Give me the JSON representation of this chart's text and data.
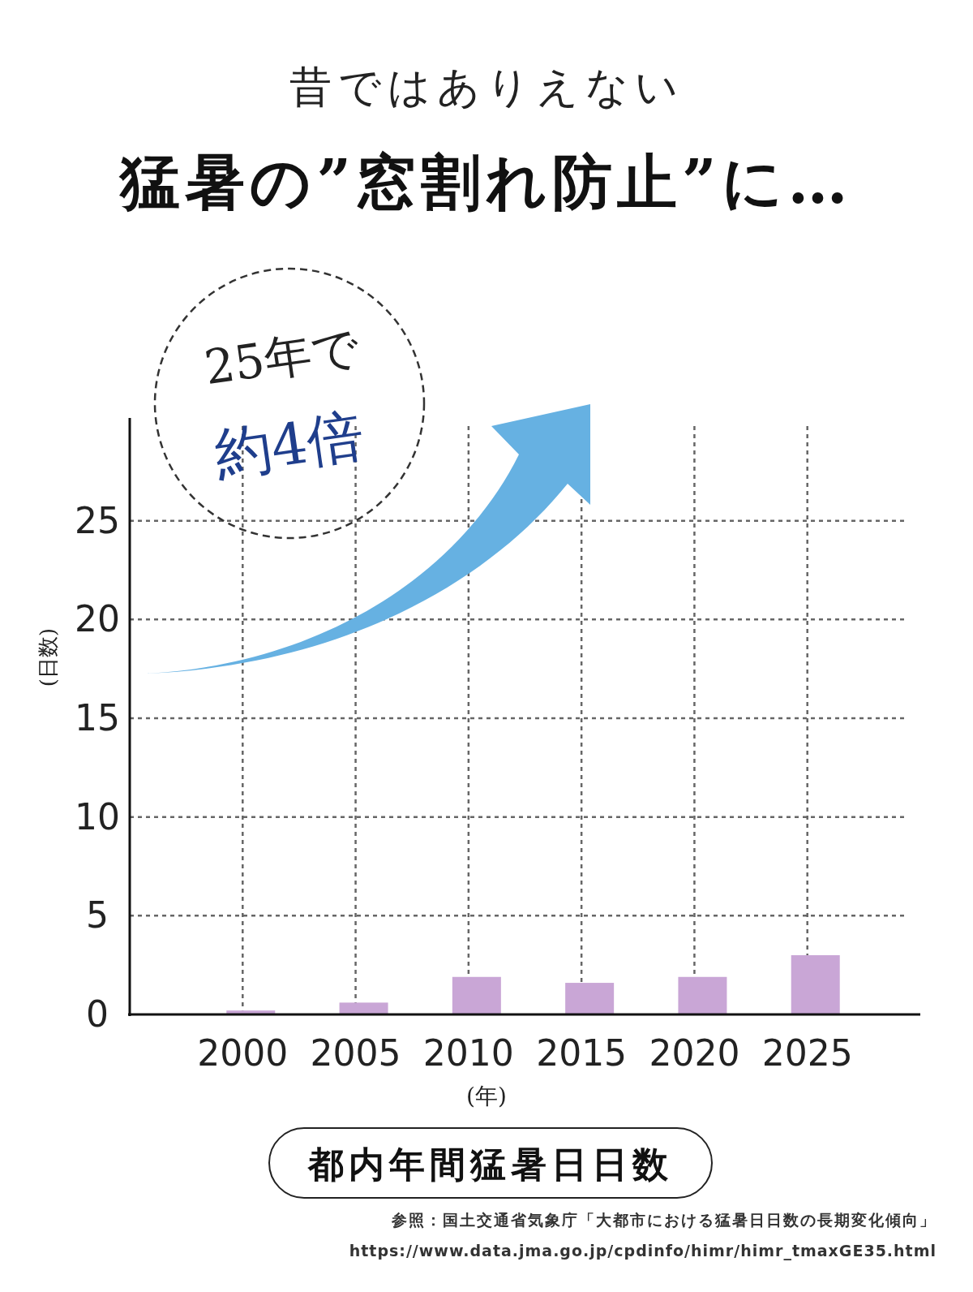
{
  "chart_data": {
    "type": "bar",
    "subtitle": "昔ではありえない",
    "title": "猛暑の”窓割れ防止”に…",
    "xlabel": "(年)",
    "ylabel": "(日数)",
    "categories": [
      "2000",
      "2005",
      "2010",
      "2015",
      "2020",
      "2025"
    ],
    "values": [
      0.2,
      0.6,
      1.9,
      1.6,
      1.9,
      3.0
    ],
    "color": "#c9a6d6",
    "ylim": [
      0,
      30
    ],
    "yticks": [
      0,
      5,
      10,
      15,
      20,
      25
    ],
    "grid": true,
    "annotations": [
      "25年で",
      "約4倍",
      "都内年間猛暑日日数",
      "参照：国土交通省気象庁「大都市における猛暑日日数の長期変化傾向」",
      "https://www.data.jma.go.jp/cpdinfo/himr/himr_tmaxGE35.html"
    ]
  }
}
